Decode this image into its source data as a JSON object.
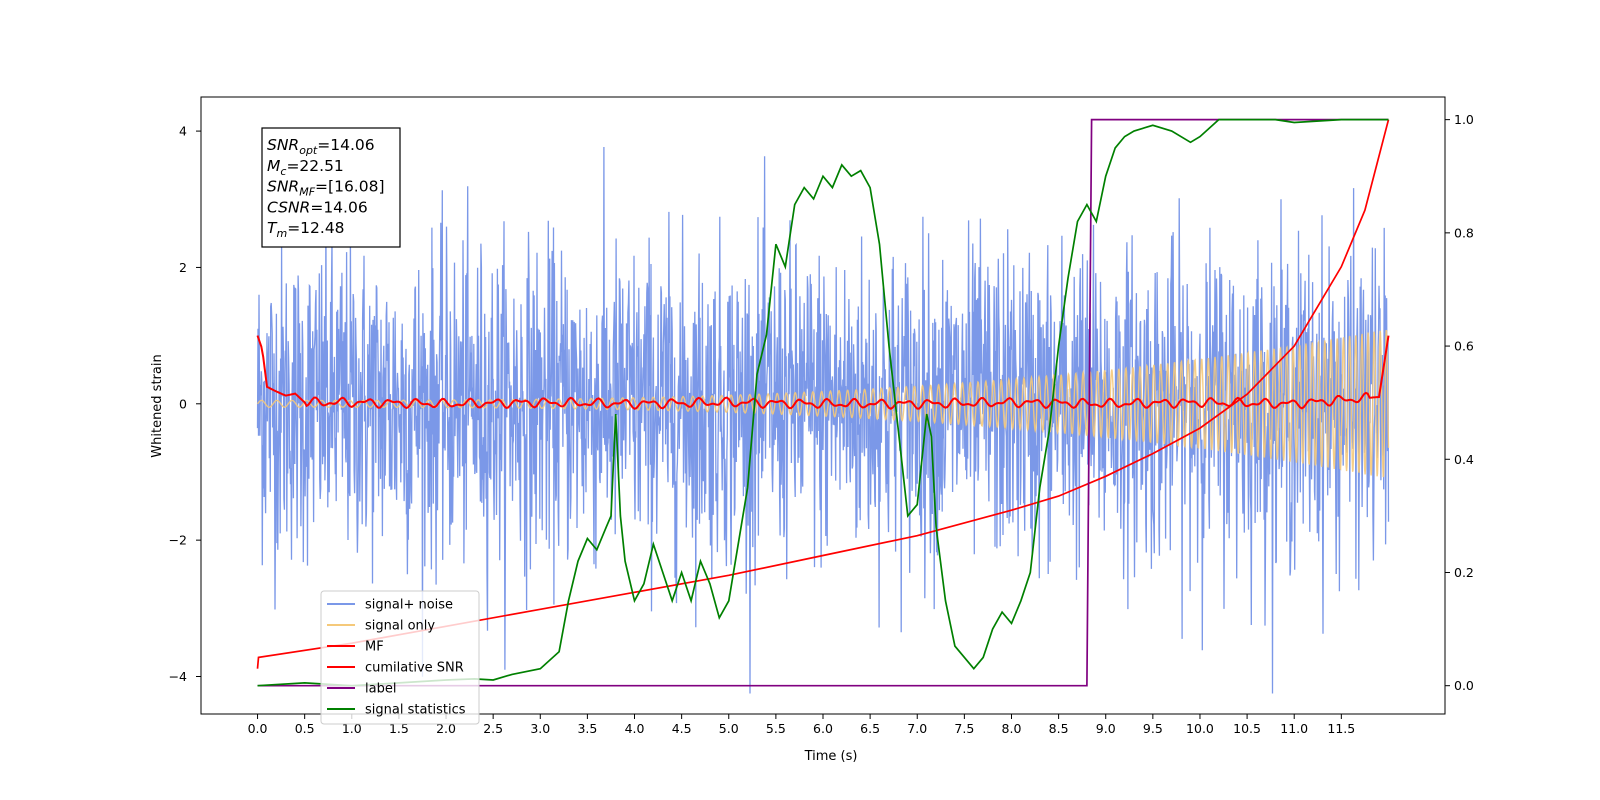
{
  "chart_data": {
    "type": "line",
    "xlabel": "Time (s)",
    "ylabel": "Whitened strain",
    "xlim": [
      -0.6,
      12.6
    ],
    "ylim": [
      -4.55,
      4.5
    ],
    "y2lim": [
      -0.05,
      1.04
    ],
    "x_ticks": [
      "0.0",
      "0.5",
      "1.0",
      "1.5",
      "2.0",
      "2.5",
      "3.0",
      "3.5",
      "4.0",
      "4.5",
      "5.0",
      "5.5",
      "6.0",
      "6.5",
      "7.0",
      "7.5",
      "8.0",
      "8.5",
      "9.0",
      "9.5",
      "10.0",
      "10.5",
      "11.0",
      "11.5"
    ],
    "y_ticks": [
      "4",
      "2",
      "0",
      "−2",
      "−4"
    ],
    "y2_ticks": [
      "1.0",
      "0.8",
      "0.6",
      "0.4",
      "0.2",
      "0.0"
    ],
    "annotation": [
      {
        "main": "SNR",
        "sub": "opt",
        "value": "=14.06"
      },
      {
        "main": "M",
        "sub": "c",
        "value": "=22.51"
      },
      {
        "main": "SNR",
        "sub": "MF",
        "value": "=[16.08]"
      },
      {
        "main": "CSNR",
        "sub": "",
        "value": "=14.06"
      },
      {
        "main": "T",
        "sub": "m",
        "value": "=12.48"
      }
    ],
    "legend_position": "lower-left",
    "series": [
      {
        "name": "signal+ noise",
        "color": "#7b98e8",
        "axis": "left",
        "kind": "noise",
        "sigma": 1.15,
        "time_range": [
          0,
          12
        ]
      },
      {
        "name": "signal only",
        "color": "#f5c97a",
        "axis": "left",
        "kind": "chirp",
        "amplitude_start": 0.05,
        "amplitude_end": 1.1
      },
      {
        "name": "MF",
        "color": "#ff0000",
        "axis": "left",
        "x": [
          0,
          0.05,
          0.1,
          0.2,
          0.3,
          0.4,
          0.5,
          1,
          2,
          3,
          4,
          5,
          6,
          7,
          8,
          9,
          10,
          11,
          11.9,
          12
        ],
        "y": [
          1.0,
          0.8,
          0.25,
          0.18,
          0.12,
          0.15,
          0.02,
          0.02,
          0.0,
          0.02,
          0.0,
          0.02,
          0.0,
          0.0,
          0.02,
          0.0,
          0.02,
          0.0,
          0.1,
          1.0
        ]
      },
      {
        "name": "cumilative SNR",
        "color": "#ff0000",
        "axis": "right",
        "x": [
          0,
          0.01,
          1,
          2,
          3,
          4,
          5,
          6,
          7,
          8,
          8.5,
          9,
          9.5,
          10,
          10.5,
          11,
          11.5,
          11.75,
          12
        ],
        "y": [
          0.03,
          0.05,
          0.075,
          0.105,
          0.135,
          0.165,
          0.195,
          0.23,
          0.265,
          0.31,
          0.335,
          0.37,
          0.41,
          0.455,
          0.515,
          0.6,
          0.74,
          0.84,
          1.0
        ]
      },
      {
        "name": "label",
        "color": "#800080",
        "axis": "right",
        "x": [
          0,
          8.8,
          8.85,
          12
        ],
        "y": [
          0,
          0,
          1,
          1
        ]
      },
      {
        "name": "signal statistics",
        "color": "#008000",
        "axis": "right",
        "x": [
          0,
          0.5,
          1,
          1.5,
          2,
          2.3,
          2.5,
          2.7,
          3,
          3.2,
          3.3,
          3.4,
          3.5,
          3.6,
          3.7,
          3.75,
          3.8,
          3.85,
          3.9,
          4.0,
          4.1,
          4.2,
          4.3,
          4.4,
          4.5,
          4.6,
          4.7,
          4.8,
          4.9,
          5.0,
          5.2,
          5.3,
          5.4,
          5.5,
          5.6,
          5.7,
          5.8,
          5.9,
          6.0,
          6.1,
          6.2,
          6.3,
          6.4,
          6.5,
          6.6,
          6.7,
          6.8,
          6.9,
          7.0,
          7.1,
          7.15,
          7.2,
          7.3,
          7.4,
          7.5,
          7.6,
          7.7,
          7.8,
          7.9,
          8.0,
          8.1,
          8.2,
          8.3,
          8.4,
          8.5,
          8.6,
          8.7,
          8.8,
          8.9,
          9.0,
          9.1,
          9.2,
          9.3,
          9.5,
          9.7,
          9.9,
          10.0,
          10.2,
          10.5,
          10.8,
          11.0,
          11.5,
          12.0
        ],
        "y": [
          0.0,
          0.005,
          0.0,
          0.005,
          0.01,
          0.012,
          0.01,
          0.02,
          0.03,
          0.06,
          0.15,
          0.22,
          0.26,
          0.24,
          0.28,
          0.3,
          0.48,
          0.3,
          0.22,
          0.15,
          0.18,
          0.25,
          0.2,
          0.15,
          0.2,
          0.15,
          0.22,
          0.18,
          0.12,
          0.15,
          0.35,
          0.55,
          0.62,
          0.78,
          0.74,
          0.85,
          0.88,
          0.86,
          0.9,
          0.88,
          0.92,
          0.9,
          0.91,
          0.88,
          0.78,
          0.6,
          0.45,
          0.3,
          0.32,
          0.48,
          0.44,
          0.28,
          0.15,
          0.07,
          0.05,
          0.03,
          0.05,
          0.1,
          0.13,
          0.11,
          0.15,
          0.2,
          0.35,
          0.45,
          0.6,
          0.72,
          0.82,
          0.85,
          0.82,
          0.9,
          0.95,
          0.97,
          0.98,
          0.99,
          0.98,
          0.96,
          0.97,
          1.0,
          1.0,
          1.0,
          0.995,
          1.0,
          1.0
        ]
      }
    ]
  }
}
